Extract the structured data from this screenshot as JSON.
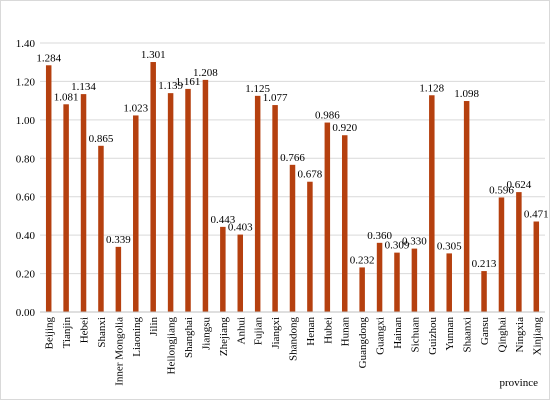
{
  "chart_data": {
    "type": "bar",
    "title": "",
    "xlabel": "province",
    "ylabel": "",
    "ylim": [
      0,
      1.4
    ],
    "yticks": [
      "0.00",
      "0.20",
      "0.40",
      "0.60",
      "0.80",
      "1.00",
      "1.20",
      "1.40"
    ],
    "grid": "horizontal",
    "bar_color": "#b5400f",
    "categories": [
      "Beijing",
      "Tianjin",
      "Hebei",
      "Shanxi",
      "Inner Mongolia",
      "Liaoning",
      "Jilin",
      "Heilongjiang",
      "Shanghai",
      "Jiangsu",
      "Zhejiang",
      "Anhui",
      "Fujian",
      "Jiangxi",
      "Shandong",
      "Henan",
      "Hubei",
      "Hunan",
      "Guangdong",
      "Guangxi",
      "Hainan",
      "Sichuan",
      "Guizhou",
      "Yunnan",
      "Shaanxi",
      "Gansu",
      "Qinghai",
      "Ningxia",
      "Xinjiang"
    ],
    "values": [
      1.284,
      1.081,
      1.134,
      0.865,
      0.339,
      1.023,
      1.301,
      1.139,
      1.161,
      1.208,
      0.443,
      0.403,
      1.125,
      1.077,
      0.766,
      0.678,
      0.986,
      0.92,
      0.232,
      0.36,
      0.309,
      0.33,
      1.128,
      0.305,
      1.098,
      0.213,
      0.596,
      0.624,
      0.471
    ],
    "data_labels": [
      "1.284",
      "1.081",
      "1.134",
      "0.865",
      "0.339",
      "1.023",
      "1.301",
      "1.139",
      "1.161",
      "1.208",
      "0.443",
      "0.403",
      "1.125",
      "1.077",
      "0.766",
      "0.678",
      "0.986",
      "0.920",
      "0.232",
      "0.360",
      "0.309",
      "0.330",
      "1.128",
      "0.305",
      "1.098",
      "0.213",
      "0.596",
      "0.624",
      "0.471"
    ]
  }
}
